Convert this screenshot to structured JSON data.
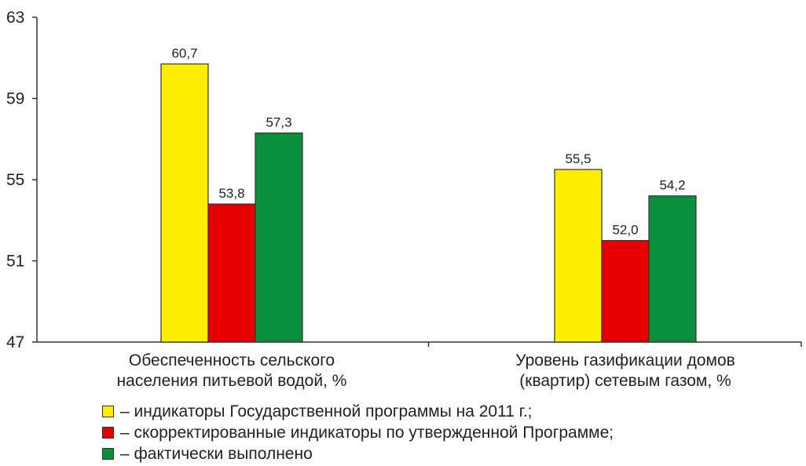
{
  "chart_data": {
    "type": "bar",
    "categories": [
      [
        "Обеспеченность сельского",
        "населения питьевой водой, %"
      ],
      [
        "Уровень газификации домов",
        "(квартир) сетевым газом, %"
      ]
    ],
    "series": [
      {
        "name": "индикаторы Государственной программы на 2011 г.;",
        "color": "#ffee00",
        "values": [
          60.7,
          55.5
        ],
        "labels": [
          "60,7",
          "55,5"
        ]
      },
      {
        "name": "скорректированные индикаторы по утвержденной Программе;",
        "color": "#e60000",
        "values": [
          53.8,
          52.0
        ],
        "labels": [
          "53,8",
          "52,0"
        ]
      },
      {
        "name": "фактически выполнено",
        "color": "#0a8f3c",
        "values": [
          57.3,
          54.2
        ],
        "labels": [
          "57,3",
          "54,2"
        ]
      }
    ],
    "yticks": [
      47,
      51,
      55,
      59,
      63
    ],
    "ylim": [
      47,
      63
    ],
    "grid": false,
    "legend_position": "bottom"
  }
}
